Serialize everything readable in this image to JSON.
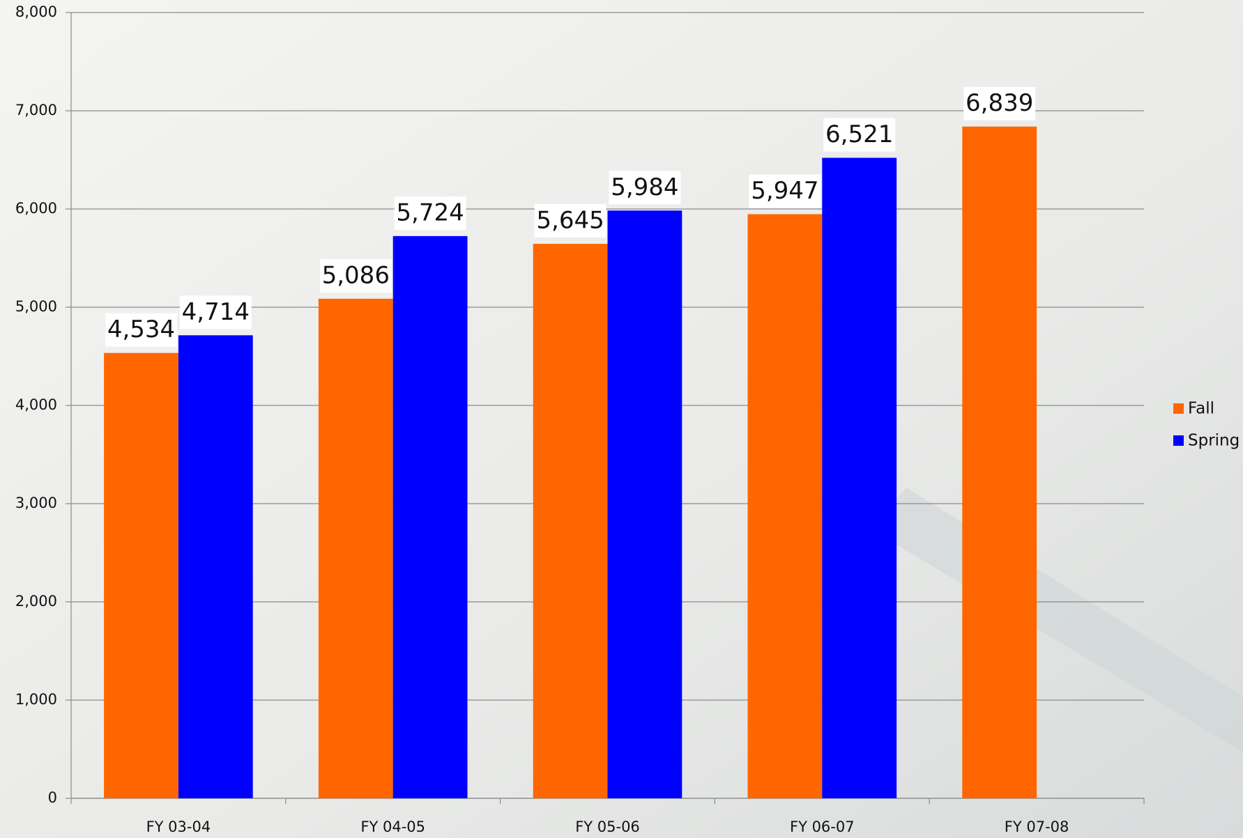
{
  "chart_data": {
    "type": "bar",
    "categories": [
      "FY 03-04",
      "FY 04-05",
      "FY 05-06",
      "FY 06-07",
      "FY 07-08"
    ],
    "series": [
      {
        "name": "Fall",
        "color": "#ff6600",
        "values": [
          4534,
          5086,
          5645,
          5947,
          6839
        ],
        "value_labels": [
          "4,534",
          "5,086",
          "5,645",
          "5,947",
          "6,839"
        ]
      },
      {
        "name": "Spring",
        "color": "#0000ff",
        "values": [
          4714,
          5724,
          5984,
          6521,
          null
        ],
        "value_labels": [
          "4,714",
          "5,724",
          "5,984",
          "6,521",
          null
        ]
      }
    ],
    "ylim": [
      0,
      8000
    ],
    "yticks": [
      0,
      {
        "value": 1000,
        "label": "1,000"
      },
      {
        "value": 2000,
        "label": "2,000"
      },
      {
        "value": 3000,
        "label": "3,000"
      },
      {
        "value": 4000,
        "label": "4,000"
      },
      {
        "value": 5000,
        "label": "5,000"
      },
      {
        "value": 6000,
        "label": "6,000"
      },
      {
        "value": 7000,
        "label": "7,000"
      },
      {
        "value": 8000,
        "label": "8,000"
      }
    ],
    "grid": true,
    "legend": "right"
  }
}
